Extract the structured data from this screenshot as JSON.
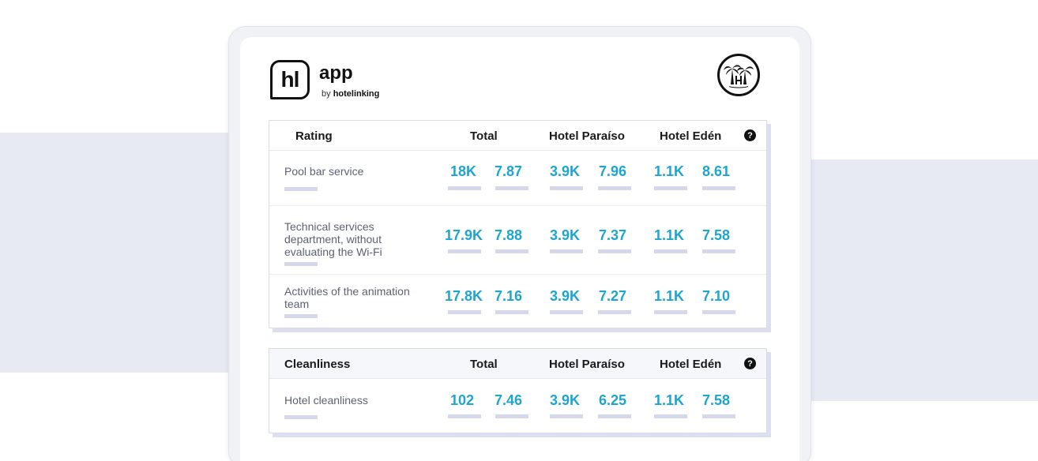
{
  "brand": {
    "logo_mark": "hl",
    "app_name": "app",
    "by_prefix": "by",
    "by_brand": "hotelinking",
    "badge_icon": "palm-trees-hotel-icon"
  },
  "tables": [
    {
      "header": {
        "category": "Rating",
        "total": "Total",
        "hotel_a": "Hotel Paraíso",
        "hotel_b": "Hotel Edén",
        "help": "?"
      },
      "rows": [
        {
          "label": "Pool bar service",
          "total_count": "18K",
          "total_score": "7.87",
          "a_count": "3.9K",
          "a_score": "7.96",
          "b_count": "1.1K",
          "b_score": "8.61"
        },
        {
          "label": "Technical services department, without evaluating the Wi-Fi",
          "total_count": "17.9K",
          "total_score": "7.88",
          "a_count": "3.9K",
          "a_score": "7.37",
          "b_count": "1.1K",
          "b_score": "7.58"
        },
        {
          "label": "Activities of the animation team",
          "total_count": "17.8K",
          "total_score": "7.16",
          "a_count": "3.9K",
          "a_score": "7.27",
          "b_count": "1.1K",
          "b_score": "7.10"
        }
      ]
    },
    {
      "header": {
        "category": "Cleanliness",
        "total": "Total",
        "hotel_a": "Hotel Paraíso",
        "hotel_b": "Hotel Edén",
        "help": "?"
      },
      "rows": [
        {
          "label": "Hotel cleanliness",
          "total_count": "102",
          "total_score": "7.46",
          "a_count": "3.9K",
          "a_score": "6.25",
          "b_count": "1.1K",
          "b_score": "7.58"
        }
      ]
    }
  ],
  "colors": {
    "value_text": "#1ea5cf",
    "placeholder_bar": "#d4d8ea",
    "background_band": "#e7e9f3"
  }
}
